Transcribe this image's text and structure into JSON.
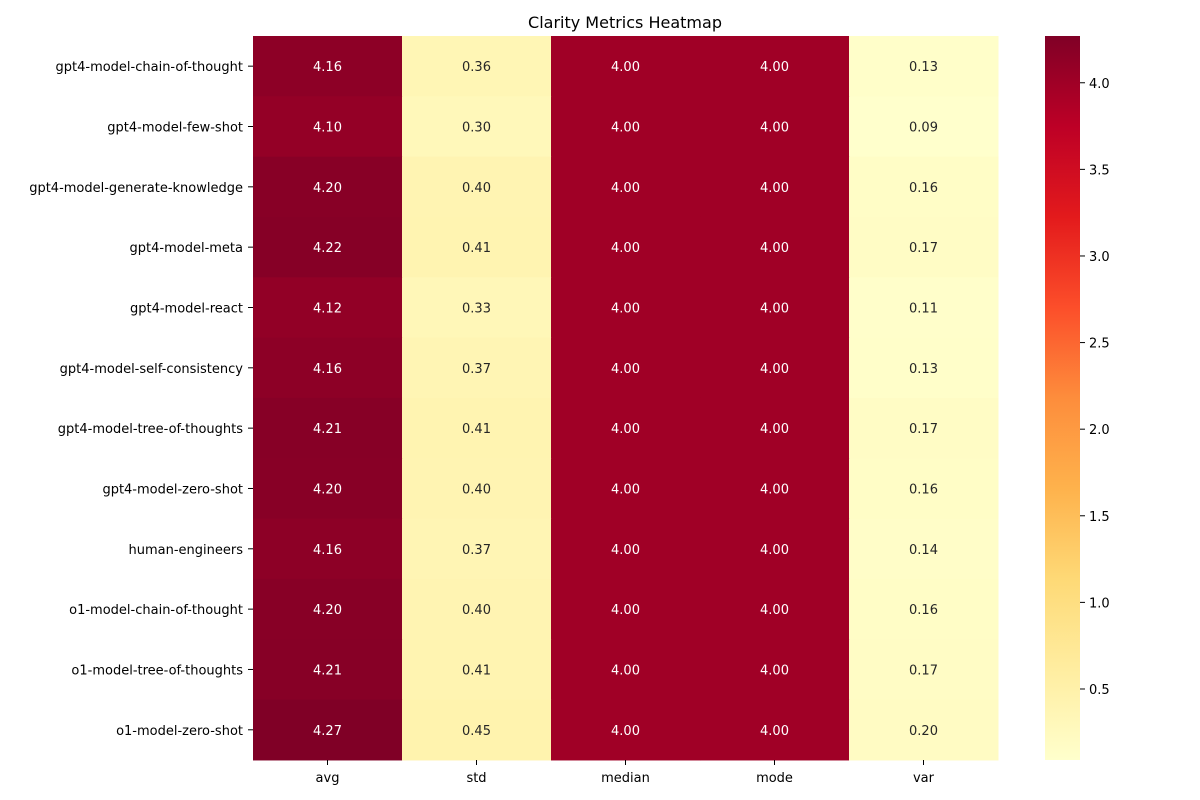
{
  "chart_data": {
    "type": "heatmap",
    "title": "Clarity Metrics Heatmap",
    "rows": [
      "gpt4-model-chain-of-thought",
      "gpt4-model-few-shot",
      "gpt4-model-generate-knowledge",
      "gpt4-model-meta",
      "gpt4-model-react",
      "gpt4-model-self-consistency",
      "gpt4-model-tree-of-thoughts",
      "gpt4-model-zero-shot",
      "human-engineers",
      "o1-model-chain-of-thought",
      "o1-model-tree-of-thoughts",
      "o1-model-zero-shot"
    ],
    "columns": [
      "avg",
      "std",
      "median",
      "mode",
      "var"
    ],
    "values": [
      [
        4.16,
        0.36,
        4.0,
        4.0,
        0.13
      ],
      [
        4.1,
        0.3,
        4.0,
        4.0,
        0.09
      ],
      [
        4.2,
        0.4,
        4.0,
        4.0,
        0.16
      ],
      [
        4.22,
        0.41,
        4.0,
        4.0,
        0.17
      ],
      [
        4.12,
        0.33,
        4.0,
        4.0,
        0.11
      ],
      [
        4.16,
        0.37,
        4.0,
        4.0,
        0.13
      ],
      [
        4.21,
        0.41,
        4.0,
        4.0,
        0.17
      ],
      [
        4.2,
        0.4,
        4.0,
        4.0,
        0.16
      ],
      [
        4.16,
        0.37,
        4.0,
        4.0,
        0.14
      ],
      [
        4.2,
        0.4,
        4.0,
        4.0,
        0.16
      ],
      [
        4.21,
        0.41,
        4.0,
        4.0,
        0.17
      ],
      [
        4.27,
        0.45,
        4.0,
        4.0,
        0.2
      ]
    ],
    "value_format": "0.00",
    "colormap": "YlOrRd",
    "color_range": [
      0.09,
      4.27
    ],
    "colorbar": {
      "placement": "right",
      "ticks": [
        0.5,
        1.0,
        1.5,
        2.0,
        2.5,
        3.0,
        3.5,
        4.0
      ],
      "tick_labels": [
        "0.5",
        "1.0",
        "1.5",
        "2.0",
        "2.5",
        "3.0",
        "3.5",
        "4.0"
      ]
    }
  }
}
